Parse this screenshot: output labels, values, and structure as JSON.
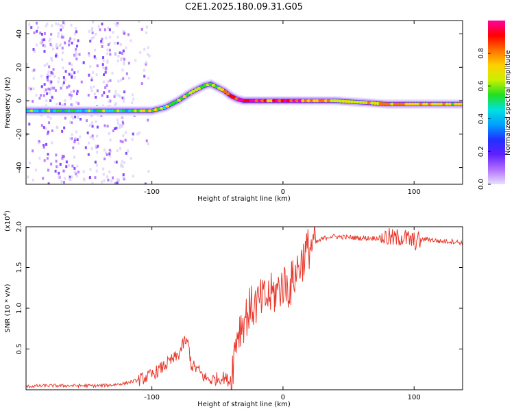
{
  "title": "C2E1.2025.180.09.31.G05",
  "chart_data": [
    {
      "type": "heatmap",
      "xlabel": "Height of straight line (km)",
      "ylabel": "Frequency (Hz)",
      "xlim": [
        -196,
        137
      ],
      "ylim": [
        -50,
        48
      ],
      "xticks": [
        -100,
        0,
        100
      ],
      "yticks": [
        40,
        20,
        0,
        -20,
        -40
      ],
      "colorbar": {
        "label": "Normalized spectral amplitude",
        "range": [
          0,
          1
        ],
        "ticks": [
          0.0,
          0.2,
          0.4,
          0.6,
          0.8
        ],
        "colors": [
          "#e8e0ff",
          "#b070ff",
          "#6020ff",
          "#2030ff",
          "#00a0ff",
          "#00e0e0",
          "#20e020",
          "#c8f000",
          "#ffd000",
          "#ff7000",
          "#ff0000",
          "#ff00a0"
        ]
      },
      "ridge": {
        "x": [
          -196,
          -180,
          -160,
          -140,
          -120,
          -100,
          -90,
          -80,
          -70,
          -60,
          -55,
          -50,
          -45,
          -40,
          -35,
          -30,
          -20,
          -10,
          0,
          10,
          20,
          40,
          60,
          80,
          100,
          120,
          137
        ],
        "y": [
          -6,
          -6,
          -6,
          -6,
          -6,
          -6,
          -4,
          0,
          5,
          9,
          10,
          8,
          6,
          3,
          1,
          0,
          0,
          0,
          0,
          0,
          0,
          0,
          -1,
          -2,
          -2,
          -2,
          -2
        ],
        "amplitude": [
          0.5,
          0.5,
          0.45,
          0.5,
          0.5,
          0.6,
          0.6,
          0.6,
          0.55,
          0.5,
          0.55,
          0.6,
          0.7,
          0.9,
          0.95,
          0.95,
          0.9,
          0.85,
          0.95,
          0.9,
          0.75,
          0.7,
          0.7,
          0.75,
          0.75,
          0.7,
          0.65
        ]
      }
    },
    {
      "type": "line",
      "xlabel": "Height of straight line (km)",
      "ylabel": "SNR (10 * v/v)",
      "scale_label": "(x10",
      "scale_exponent": "4",
      "xlim": [
        -196,
        137
      ],
      "ylim": [
        0,
        2.0
      ],
      "xticks": [
        -100,
        0,
        100
      ],
      "yticks": [
        2.0,
        1.5,
        1.0,
        0.5
      ],
      "color": "#e8382c",
      "x": [
        -196,
        -180,
        -160,
        -140,
        -130,
        -120,
        -110,
        -100,
        -90,
        -80,
        -75,
        -72,
        -70,
        -65,
        -60,
        -55,
        -50,
        -45,
        -42,
        -40,
        -38,
        -35,
        -30,
        -25,
        -20,
        -15,
        -10,
        -5,
        0,
        5,
        10,
        15,
        20,
        25,
        30,
        35,
        40,
        50,
        60,
        70,
        80,
        85,
        90,
        95,
        100,
        110,
        120,
        130,
        137
      ],
      "y": [
        0.04,
        0.05,
        0.05,
        0.05,
        0.06,
        0.08,
        0.12,
        0.18,
        0.3,
        0.42,
        0.6,
        0.55,
        0.3,
        0.25,
        0.15,
        0.12,
        0.14,
        0.15,
        0.12,
        0.1,
        0.35,
        0.7,
        0.85,
        1.0,
        1.05,
        1.1,
        1.15,
        1.2,
        1.3,
        1.25,
        1.45,
        1.6,
        1.75,
        1.8,
        1.85,
        1.88,
        1.88,
        1.87,
        1.86,
        1.86,
        1.87,
        1.85,
        1.88,
        1.85,
        1.82,
        1.85,
        1.82,
        1.82,
        1.8
      ]
    }
  ]
}
